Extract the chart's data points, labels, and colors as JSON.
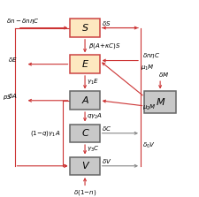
{
  "boxes": {
    "S": [
      0.34,
      0.8,
      0.15,
      0.1
    ],
    "E": [
      0.34,
      0.6,
      0.15,
      0.1
    ],
    "A": [
      0.34,
      0.4,
      0.15,
      0.1
    ],
    "C": [
      0.34,
      0.22,
      0.15,
      0.1
    ],
    "V": [
      0.34,
      0.04,
      0.15,
      0.1
    ],
    "M": [
      0.72,
      0.38,
      0.16,
      0.12
    ]
  },
  "box_facecolors": {
    "S": "#fde8c0",
    "E": "#fde8c0",
    "A": "#c8c8c8",
    "C": "#c8c8c8",
    "V": "#c8c8c8",
    "M": "#c8c8c8"
  },
  "box_edgecolors": {
    "S": "#cc4444",
    "E": "#cc4444",
    "A": "#666666",
    "C": "#666666",
    "V": "#666666",
    "M": "#666666"
  },
  "rc": "#cc3333",
  "dc": "#888888",
  "bg": "#ffffff",
  "fs": 5.0,
  "lw": 0.8
}
